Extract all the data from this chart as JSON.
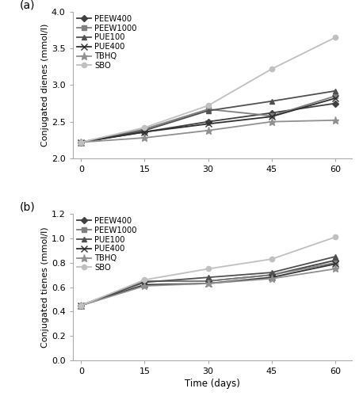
{
  "time": [
    0,
    15,
    30,
    45,
    60
  ],
  "panel_a": {
    "title": "(a)",
    "ylabel": "Conjugated dienes (mmol/l)",
    "ylim": [
      2.0,
      4.0
    ],
    "yticks": [
      2.0,
      2.5,
      3.0,
      3.5,
      4.0
    ],
    "series": {
      "PEEW400": [
        2.22,
        2.36,
        2.5,
        2.62,
        2.75
      ],
      "PEEW1000": [
        2.22,
        2.4,
        2.67,
        2.58,
        2.85
      ],
      "PUE100": [
        2.22,
        2.38,
        2.65,
        2.78,
        2.92
      ],
      "PUE400": [
        2.22,
        2.36,
        2.47,
        2.57,
        2.82
      ],
      "TBHQ": [
        2.22,
        2.28,
        2.38,
        2.5,
        2.52
      ],
      "SBO": [
        2.22,
        2.42,
        2.72,
        3.22,
        3.65
      ]
    }
  },
  "panel_b": {
    "title": "(b)",
    "ylabel": "Conjugated tienes (mmol/l)",
    "xlabel": "Time (days)",
    "ylim": [
      0.0,
      1.2
    ],
    "yticks": [
      0.0,
      0.2,
      0.4,
      0.6,
      0.8,
      1.0,
      1.2
    ],
    "series": {
      "PEEW400": [
        0.45,
        0.65,
        0.65,
        0.7,
        0.82
      ],
      "PEEW1000": [
        0.45,
        0.65,
        0.65,
        0.7,
        0.8
      ],
      "PUE100": [
        0.45,
        0.64,
        0.68,
        0.72,
        0.85
      ],
      "PUE400": [
        0.45,
        0.62,
        0.63,
        0.68,
        0.79
      ],
      "TBHQ": [
        0.45,
        0.61,
        0.63,
        0.67,
        0.75
      ],
      "SBO": [
        0.45,
        0.66,
        0.75,
        0.83,
        1.01
      ]
    }
  },
  "series_styles": {
    "PEEW400": {
      "color": "#404040",
      "marker": "D",
      "linestyle": "-",
      "linewidth": 1.3,
      "markersize": 4.5
    },
    "PEEW1000": {
      "color": "#808080",
      "marker": "s",
      "linestyle": "-",
      "linewidth": 1.3,
      "markersize": 4.5
    },
    "PUE100": {
      "color": "#505050",
      "marker": "^",
      "linestyle": "-",
      "linewidth": 1.3,
      "markersize": 4.5
    },
    "PUE400": {
      "color": "#303030",
      "marker": "x",
      "linestyle": "-",
      "linewidth": 1.3,
      "markersize": 5.5
    },
    "TBHQ": {
      "color": "#909090",
      "marker": "*",
      "linestyle": "-",
      "linewidth": 1.3,
      "markersize": 6.5
    },
    "SBO": {
      "color": "#c0c0c0",
      "marker": "o",
      "linestyle": "-",
      "linewidth": 1.3,
      "markersize": 4.5
    }
  },
  "legend_order": [
    "PEEW400",
    "PEEW1000",
    "PUE100",
    "PUE400",
    "TBHQ",
    "SBO"
  ],
  "xticks": [
    0,
    15,
    30,
    45,
    60
  ],
  "xlim": [
    -2,
    64
  ]
}
